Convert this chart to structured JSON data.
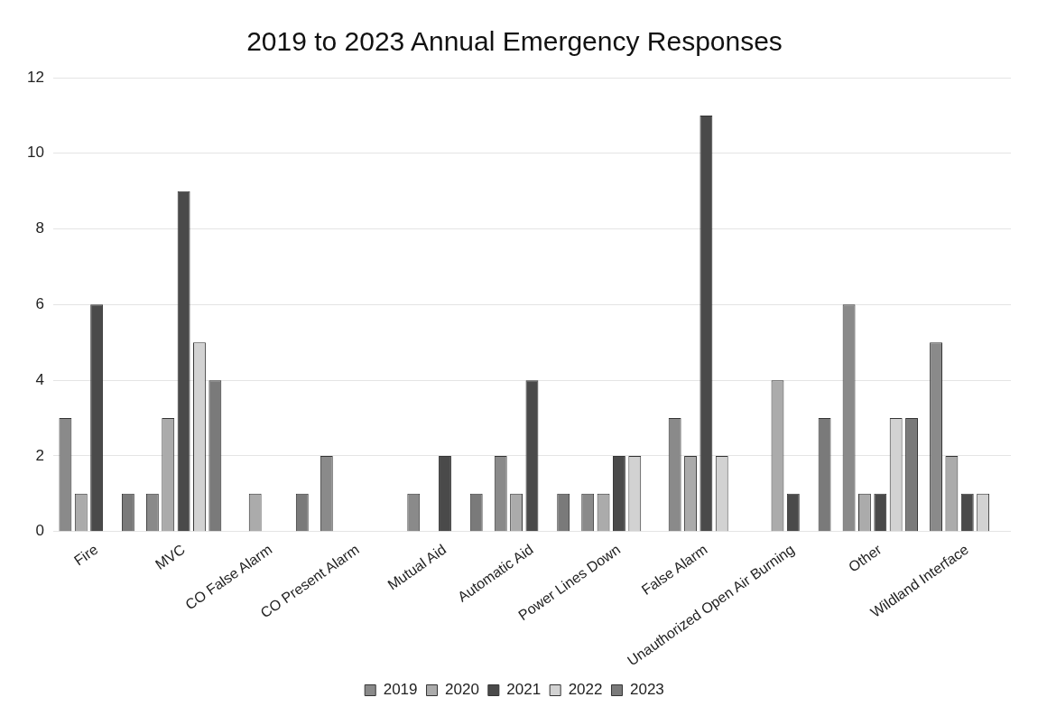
{
  "chart_data": {
    "type": "bar",
    "title": "2019 to 2023 Annual Emergency Responses",
    "categories": [
      "Fire",
      "MVC",
      "CO False Alarm",
      "CO Present Alarm",
      "Mutual Aid",
      "Automatic Aid",
      "Power Lines Down",
      "False Alarm",
      "Unauthorized Open Air Burning",
      "Other",
      "Wildland Interface"
    ],
    "series": [
      {
        "name": "2019",
        "color": "#8a8a8a",
        "values": [
          3,
          1,
          0,
          2,
          1,
          2,
          1,
          3,
          0,
          6,
          5
        ]
      },
      {
        "name": "2020",
        "color": "#ababab",
        "values": [
          1,
          3,
          1,
          0,
          0,
          1,
          1,
          2,
          4,
          1,
          2
        ]
      },
      {
        "name": "2021",
        "color": "#4a4a4a",
        "values": [
          6,
          9,
          0,
          0,
          2,
          4,
          2,
          11,
          1,
          1,
          1
        ]
      },
      {
        "name": "2022",
        "color": "#d2d2d2",
        "values": [
          0,
          5,
          0,
          0,
          0,
          0,
          2,
          2,
          0,
          3,
          1
        ]
      },
      {
        "name": "2023",
        "color": "#7a7a7a",
        "values": [
          1,
          4,
          1,
          0,
          1,
          1,
          0,
          0,
          3,
          3,
          0
        ]
      }
    ],
    "ylim": [
      0,
      12
    ],
    "yticks": [
      0,
      2,
      4,
      6,
      8,
      10,
      12
    ],
    "grid": "y",
    "legend": "bottom"
  }
}
